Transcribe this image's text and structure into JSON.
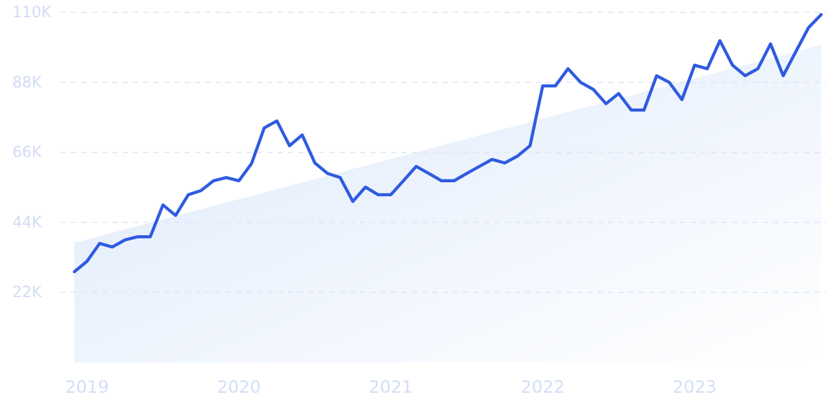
{
  "chart_data": {
    "type": "line",
    "categories": [
      null,
      "2019",
      null,
      null,
      null,
      null,
      null,
      null,
      null,
      null,
      null,
      null,
      null,
      "2020",
      null,
      null,
      null,
      null,
      null,
      null,
      null,
      null,
      null,
      null,
      null,
      "2021",
      null,
      null,
      null,
      null,
      null,
      null,
      null,
      null,
      null,
      null,
      null,
      "2022",
      null,
      null,
      null,
      null,
      null,
      null,
      null,
      null,
      null,
      null,
      null,
      "2023",
      null,
      null,
      null,
      null,
      null,
      null,
      null,
      null,
      null,
      null
    ],
    "series": [
      {
        "color": "#2f5be0",
        "values": [
          28500,
          31800,
          37400,
          36300,
          38500,
          39500,
          39500,
          49500,
          46200,
          52700,
          54000,
          57100,
          58100,
          57100,
          62500,
          73700,
          75900,
          68100,
          71500,
          62700,
          59400,
          58100,
          50600,
          55100,
          52700,
          52700,
          57100,
          61600,
          59400,
          57100,
          57100,
          59400,
          61600,
          63800,
          62700,
          64800,
          68100,
          86900,
          86900,
          92300,
          88000,
          85800,
          81300,
          84500,
          79300,
          79300,
          90100,
          88000,
          82600,
          93400,
          92300,
          101100,
          93400,
          90100,
          92300,
          100100,
          90100,
          97700,
          105200,
          109300
        ]
      }
    ],
    "trend": {
      "values": [
        37600,
        99800
      ],
      "color": "#dde9fb"
    },
    "ylim": [
      0,
      110000
    ],
    "yticks": [
      {
        "value": 22000,
        "label": "22K"
      },
      {
        "value": 44000,
        "label": "44K"
      },
      {
        "value": 66000,
        "label": "66K"
      },
      {
        "value": 88000,
        "label": "88K"
      },
      {
        "value": 110000,
        "label": "110K"
      }
    ],
    "grid": true
  }
}
